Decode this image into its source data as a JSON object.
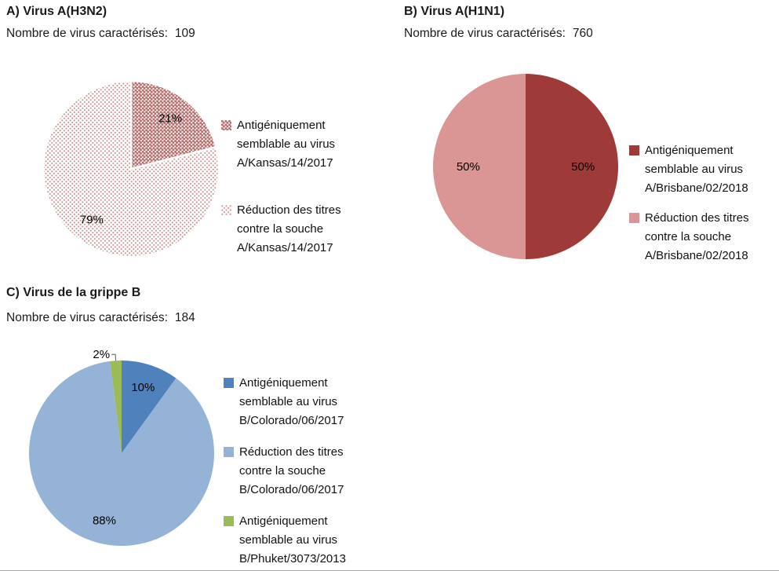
{
  "figure": {
    "background": "#FFFFFF",
    "border_color": "#A6A6A6"
  },
  "panels": [
    {
      "title": "A) Virus A(H3N2)",
      "count_label": "Nombre de virus caractérisés:",
      "count": "109"
    },
    {
      "title": "B) Virus A(H1N1)",
      "count_label": "Nombre de virus caractérisés:",
      "count": "760"
    },
    {
      "title": "C) Virus de la grippe B",
      "count_label": "Nombre de virus caractérisés:",
      "count": "184"
    }
  ],
  "chart_data": [
    {
      "type": "pie",
      "title": "A) Virus A(H3N2)",
      "n_characterized": 109,
      "start_angle_deg": 0,
      "direction": "clockwise",
      "legend_position": "right",
      "slices": [
        {
          "label": "Antigéniquement semblable au virus A/Kansas/14/2017",
          "value_pct": 21,
          "data_label": "21%",
          "fill": {
            "pattern": "dots",
            "dot_color": "#B66D6B",
            "dot_r": 1.6,
            "spacing": 4.6,
            "bg": "#FFFFFF"
          }
        },
        {
          "label": "Réduction des titres contre la souche A/Kansas/14/2017",
          "value_pct": 79,
          "data_label": "79%",
          "fill": {
            "pattern": "dots",
            "dot_color": "#C98F8D",
            "dot_r": 1.05,
            "spacing": 5.2,
            "bg": "#FFFFFF"
          }
        }
      ]
    },
    {
      "type": "pie",
      "title": "B) Virus A(H1N1)",
      "n_characterized": 760,
      "start_angle_deg": 0,
      "direction": "clockwise",
      "legend_position": "right",
      "slices": [
        {
          "label": "Antigéniquement semblable au virus A/Brisbane/02/2018",
          "value_pct": 50,
          "data_label": "50%",
          "fill": {
            "color": "#9E3A38"
          }
        },
        {
          "label": "Réduction des titres contre la souche A/Brisbane/02/2018",
          "value_pct": 50,
          "data_label": "50%",
          "fill": {
            "color": "#D99694"
          }
        }
      ]
    },
    {
      "type": "pie",
      "title": "C) Virus de la grippe B",
      "n_characterized": 184,
      "start_angle_deg": 0,
      "direction": "clockwise",
      "legend_position": "right",
      "slices": [
        {
          "label": "Antigéniquement semblable au virus B/Colorado/06/2017",
          "value_pct": 10,
          "data_label": "10%",
          "fill": {
            "color": "#4F81BD"
          }
        },
        {
          "label": "Réduction des titres contre la souche B/Colorado/06/2017",
          "value_pct": 88,
          "data_label": "88%",
          "fill": {
            "color": "#95B3D7"
          }
        },
        {
          "label": "Antigéniquement semblable au virus B/Phuket/3073/2013",
          "value_pct": 2,
          "data_label": "2%",
          "fill": {
            "color": "#9BBB59"
          },
          "label_outside": true
        }
      ]
    }
  ]
}
